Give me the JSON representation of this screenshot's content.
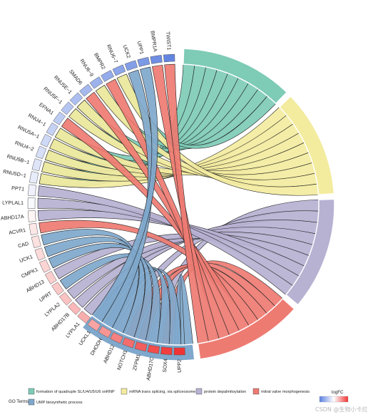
{
  "chart_data": {
    "type": "chord",
    "title": "",
    "genes": [
      {
        "name": "UPP2",
        "logFC": 1.0
      },
      {
        "name": "SOX4",
        "logFC": 0.95
      },
      {
        "name": "ABHD17C",
        "logFC": 0.88
      },
      {
        "name": "ZFPM1",
        "logFC": 0.8
      },
      {
        "name": "NOTCH1",
        "logFC": 0.72
      },
      {
        "name": "ABHD12",
        "logFC": 0.62
      },
      {
        "name": "DHODH",
        "logFC": 0.52
      },
      {
        "name": "UCKL1",
        "logFC": 0.45
      },
      {
        "name": "LYPLA1",
        "logFC": 0.4
      },
      {
        "name": "ABHD17B",
        "logFC": 0.35
      },
      {
        "name": "LYPLA2",
        "logFC": 0.3
      },
      {
        "name": "UPRT",
        "logFC": 0.27
      },
      {
        "name": "ABHD13",
        "logFC": 0.24
      },
      {
        "name": "CMPK1",
        "logFC": 0.21
      },
      {
        "name": "UCK1",
        "logFC": 0.18
      },
      {
        "name": "CAD",
        "logFC": 0.15
      },
      {
        "name": "ACVR1",
        "logFC": 0.12
      },
      {
        "name": "ABHD17A",
        "logFC": 0.05
      },
      {
        "name": "LYPLAL1",
        "logFC": -0.05
      },
      {
        "name": "PPT1",
        "logFC": -0.1
      },
      {
        "name": "RNU5D−1",
        "logFC": -0.15
      },
      {
        "name": "RNU5B−1",
        "logFC": -0.2
      },
      {
        "name": "RNU4−2",
        "logFC": -0.25
      },
      {
        "name": "RNU5A−1",
        "logFC": -0.3
      },
      {
        "name": "RNU4−1",
        "logFC": -0.35
      },
      {
        "name": "EFNA1",
        "logFC": -0.4
      },
      {
        "name": "RNU5F−1",
        "logFC": -0.45
      },
      {
        "name": "RNU5E−1",
        "logFC": -0.5
      },
      {
        "name": "SMAD6",
        "logFC": -0.55
      },
      {
        "name": "RNU6−9",
        "logFC": -0.6
      },
      {
        "name": "BMPR2",
        "logFC": -0.65
      },
      {
        "name": "RNU6−7",
        "logFC": -0.7
      },
      {
        "name": "UCK2",
        "logFC": -0.75
      },
      {
        "name": "UPP1",
        "logFC": -0.8
      },
      {
        "name": "BMPR1A",
        "logFC": -0.88
      },
      {
        "name": "TWIST1",
        "logFC": -0.95
      }
    ],
    "terms": [
      {
        "name": "formation of quadruple SL/U4/U5/U6 snRNP",
        "color": "#7ecbb6",
        "genes": [
          "RNU5D−1",
          "RNU5B−1",
          "RNU4−2",
          "RNU5A−1",
          "RNU4−1",
          "RNU5F−1",
          "RNU5E−1",
          "RNU6−9",
          "RNU6−7"
        ]
      },
      {
        "name": "mRNA trans splicing, via spliceosome",
        "color": "#f3ec9f",
        "genes": [
          "RNU5D−1",
          "RNU5B−1",
          "RNU4−2",
          "RNU5A−1",
          "RNU4−1",
          "RNU5F−1",
          "RNU5E−1",
          "RNU6−9",
          "RNU6−7"
        ]
      },
      {
        "name": "protein depalmitoylation",
        "color": "#b7b1d2",
        "genes": [
          "ABHD17C",
          "ABHD12",
          "LYPLA1",
          "ABHD17B",
          "LYPLA2",
          "ABHD13",
          "ABHD17A",
          "LYPLAL1",
          "PPT1"
        ]
      },
      {
        "name": "mitral valve morphogenesis",
        "color": "#ee7b72",
        "genes": [
          "SOX4",
          "ZFPM1",
          "NOTCH1",
          "ACVR1",
          "EFNA1",
          "SMAD6",
          "BMPR2",
          "BMPR1A",
          "TWIST1"
        ]
      },
      {
        "name": "UMP biosynthetic process",
        "color": "#7fa8cc",
        "genes": [
          "UPP2",
          "DHODH",
          "UCKL1",
          "UPRT",
          "CMPK1",
          "UCK1",
          "CAD",
          "UCK2",
          "UPP1"
        ]
      }
    ],
    "legend": {
      "label": "GO Terms",
      "logfc_label": "logFC",
      "logfc_range": [
        -1,
        1
      ],
      "colors": {
        "low": "#5b7fe0",
        "mid": "#ffffff",
        "high": "#f03434"
      }
    },
    "watermark": "CSDN @生物小卡拉"
  }
}
